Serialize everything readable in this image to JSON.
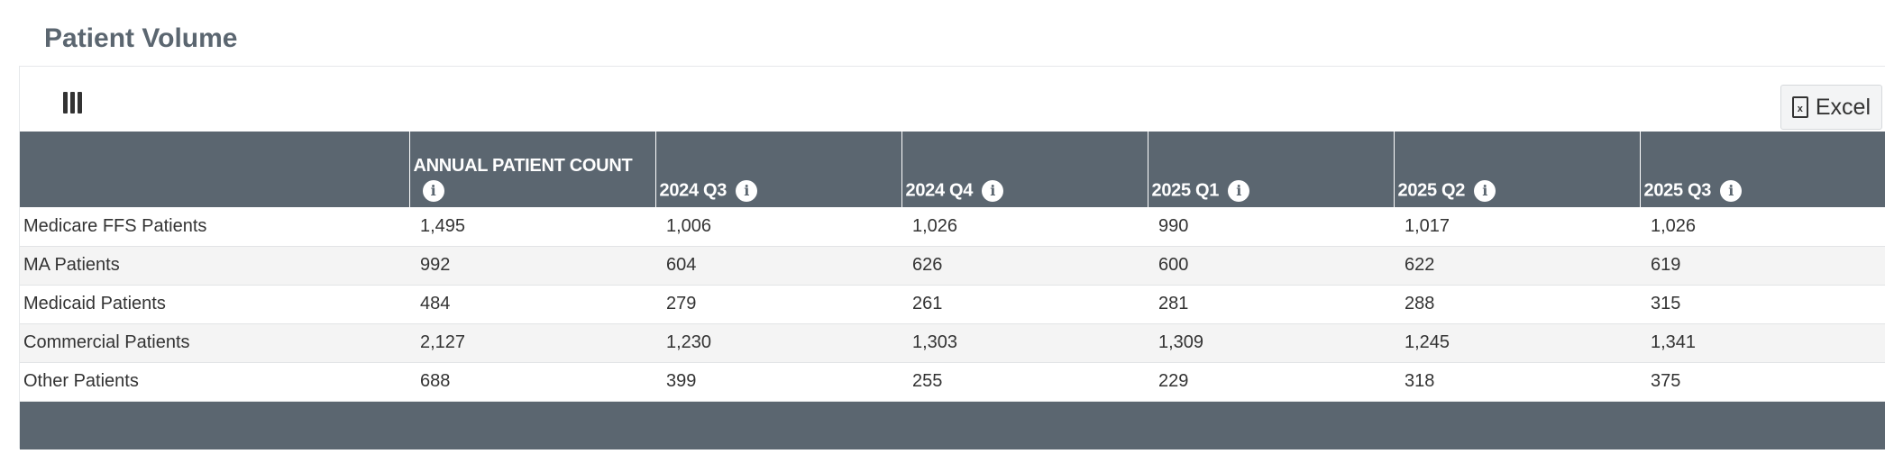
{
  "page": {
    "title": "Patient Volume"
  },
  "toolbar": {
    "excel_label": "Excel",
    "excel_icon": "file-excel-icon",
    "columns_icon": "columns-icon"
  },
  "table": {
    "headers": [
      {
        "label": ""
      },
      {
        "label": "ANNUAL PATIENT COUNT"
      },
      {
        "label": "2024 Q3"
      },
      {
        "label": "2024 Q4"
      },
      {
        "label": "2025 Q1"
      },
      {
        "label": "2025 Q2"
      },
      {
        "label": "2025 Q3"
      }
    ],
    "rows": [
      [
        "Medicare FFS Patients",
        "1,495",
        "1,006",
        "1,026",
        "990",
        "1,017",
        "1,026"
      ],
      [
        "MA Patients",
        "992",
        "604",
        "626",
        "600",
        "622",
        "619"
      ],
      [
        "Medicaid Patients",
        "484",
        "279",
        "261",
        "281",
        "288",
        "315"
      ],
      [
        "Commercial Patients",
        "2,127",
        "1,230",
        "1,303",
        "1,309",
        "1,245",
        "1,341"
      ],
      [
        "Other Patients",
        "688",
        "399",
        "255",
        "229",
        "318",
        "375"
      ]
    ]
  },
  "colors": {
    "header_bg": "#5b6670",
    "title": "#5b6670",
    "stripe": "#f4f4f4"
  }
}
